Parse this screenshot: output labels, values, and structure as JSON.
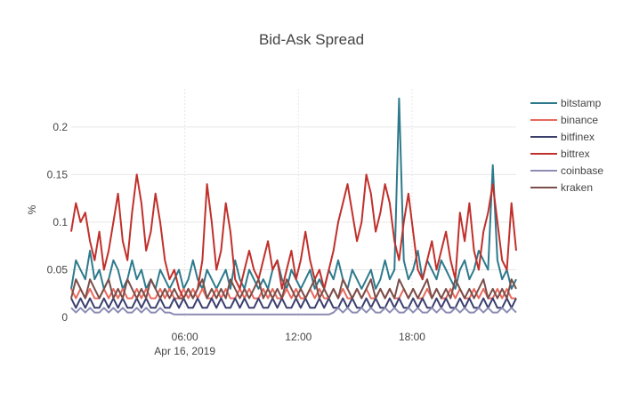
{
  "chart_data": {
    "type": "line",
    "title": "Bid-Ask Spread",
    "xlabel": "",
    "ylabel": "%",
    "x_range_hours": [
      0,
      23.5
    ],
    "ylim": [
      0,
      0.24
    ],
    "grid": true,
    "x_ticks": [
      {
        "hour": 6,
        "label": "06:00",
        "sublabel": "Apr 16, 2019"
      },
      {
        "hour": 12,
        "label": "12:00",
        "sublabel": ""
      },
      {
        "hour": 18,
        "label": "18:00",
        "sublabel": ""
      }
    ],
    "y_ticks": [
      {
        "value": 0,
        "label": "0"
      },
      {
        "value": 0.05,
        "label": "0.05"
      },
      {
        "value": 0.1,
        "label": "0.1"
      },
      {
        "value": 0.15,
        "label": "0.15"
      },
      {
        "value": 0.2,
        "label": "0.2"
      }
    ],
    "legend_position": "right",
    "series": [
      {
        "name": "bitstamp",
        "color": "#2e7a8c",
        "values": [
          0.03,
          0.06,
          0.05,
          0.04,
          0.07,
          0.04,
          0.05,
          0.03,
          0.04,
          0.06,
          0.05,
          0.03,
          0.04,
          0.06,
          0.04,
          0.05,
          0.03,
          0.04,
          0.03,
          0.05,
          0.04,
          0.03,
          0.04,
          0.05,
          0.03,
          0.04,
          0.06,
          0.04,
          0.03,
          0.05,
          0.04,
          0.03,
          0.04,
          0.05,
          0.03,
          0.06,
          0.04,
          0.03,
          0.05,
          0.04,
          0.03,
          0.04,
          0.03,
          0.05,
          0.06,
          0.04,
          0.03,
          0.05,
          0.04,
          0.03,
          0.04,
          0.05,
          0.03,
          0.04,
          0.03,
          0.05,
          0.04,
          0.06,
          0.04,
          0.03,
          0.05,
          0.04,
          0.03,
          0.04,
          0.05,
          0.03,
          0.04,
          0.06,
          0.04,
          0.05,
          0.23,
          0.06,
          0.04,
          0.05,
          0.07,
          0.04,
          0.06,
          0.05,
          0.04,
          0.06,
          0.05,
          0.04,
          0.03,
          0.05,
          0.06,
          0.04,
          0.05,
          0.07,
          0.06,
          0.05,
          0.16,
          0.06,
          0.04,
          0.05,
          0.03,
          0.04
        ]
      },
      {
        "name": "binance",
        "color": "#e8695e",
        "values": [
          0.03,
          0.02,
          0.03,
          0.02,
          0.03,
          0.02,
          0.02,
          0.03,
          0.02,
          0.03,
          0.02,
          0.03,
          0.02,
          0.02,
          0.03,
          0.02,
          0.03,
          0.02,
          0.02,
          0.03,
          0.02,
          0.03,
          0.02,
          0.02,
          0.03,
          0.02,
          0.03,
          0.02,
          0.03,
          0.02,
          0.02,
          0.03,
          0.02,
          0.03,
          0.02,
          0.02,
          0.03,
          0.02,
          0.03,
          0.02,
          0.02,
          0.03,
          0.02,
          0.03,
          0.02,
          0.02,
          0.03,
          0.02,
          0.03,
          0.02,
          0.02,
          0.03,
          0.02,
          0.03,
          0.02,
          0.02,
          0.03,
          0.02,
          0.03,
          0.02,
          0.02,
          0.03,
          0.02,
          0.03,
          0.02,
          0.02,
          0.03,
          0.02,
          0.03,
          0.02,
          0.02,
          0.03,
          0.02,
          0.03,
          0.02,
          0.02,
          0.03,
          0.02,
          0.03,
          0.02,
          0.02,
          0.03,
          0.02,
          0.03,
          0.02,
          0.02,
          0.03,
          0.02,
          0.03,
          0.02,
          0.02,
          0.03,
          0.02,
          0.03,
          0.02,
          0.02
        ]
      },
      {
        "name": "bitfinex",
        "color": "#3b3f6e",
        "values": [
          0.02,
          0.01,
          0.02,
          0.01,
          0.02,
          0.01,
          0.01,
          0.02,
          0.01,
          0.02,
          0.01,
          0.02,
          0.01,
          0.01,
          0.02,
          0.01,
          0.02,
          0.01,
          0.01,
          0.02,
          0.01,
          0.01,
          0.02,
          0.01,
          0.02,
          0.01,
          0.01,
          0.02,
          0.01,
          0.01,
          0.02,
          0.01,
          0.02,
          0.01,
          0.01,
          0.02,
          0.01,
          0.02,
          0.01,
          0.01,
          0.02,
          0.01,
          0.01,
          0.02,
          0.01,
          0.02,
          0.01,
          0.01,
          0.02,
          0.01,
          0.02,
          0.01,
          0.01,
          0.02,
          0.01,
          0.02,
          0.01,
          0.01,
          0.02,
          0.01,
          0.02,
          0.01,
          0.01,
          0.02,
          0.01,
          0.02,
          0.01,
          0.01,
          0.02,
          0.01,
          0.02,
          0.01,
          0.01,
          0.02,
          0.01,
          0.02,
          0.01,
          0.01,
          0.02,
          0.01,
          0.02,
          0.01,
          0.01,
          0.02,
          0.01,
          0.02,
          0.01,
          0.01,
          0.02,
          0.01,
          0.02,
          0.01,
          0.01,
          0.02,
          0.01,
          0.02
        ]
      },
      {
        "name": "bittrex",
        "color": "#c0302b",
        "values": [
          0.09,
          0.12,
          0.1,
          0.11,
          0.08,
          0.06,
          0.09,
          0.05,
          0.07,
          0.1,
          0.13,
          0.08,
          0.06,
          0.11,
          0.15,
          0.12,
          0.07,
          0.09,
          0.13,
          0.1,
          0.06,
          0.04,
          0.05,
          0.03,
          0.02,
          0.03,
          0.02,
          0.03,
          0.06,
          0.14,
          0.1,
          0.05,
          0.07,
          0.12,
          0.09,
          0.04,
          0.03,
          0.05,
          0.07,
          0.05,
          0.04,
          0.06,
          0.08,
          0.05,
          0.06,
          0.03,
          0.05,
          0.07,
          0.04,
          0.06,
          0.09,
          0.06,
          0.04,
          0.05,
          0.03,
          0.05,
          0.07,
          0.1,
          0.12,
          0.14,
          0.11,
          0.08,
          0.1,
          0.15,
          0.13,
          0.09,
          0.11,
          0.14,
          0.12,
          0.08,
          0.06,
          0.1,
          0.13,
          0.09,
          0.05,
          0.04,
          0.06,
          0.08,
          0.05,
          0.07,
          0.09,
          0.06,
          0.04,
          0.11,
          0.08,
          0.12,
          0.07,
          0.05,
          0.09,
          0.11,
          0.14,
          0.1,
          0.06,
          0.05,
          0.12,
          0.07
        ]
      },
      {
        "name": "coinbase",
        "color": "#8c8cb4",
        "values": [
          0.01,
          0.005,
          0.01,
          0.005,
          0.01,
          0.005,
          0.005,
          0.01,
          0.005,
          0.01,
          0.005,
          0.01,
          0.005,
          0.005,
          0.01,
          0.005,
          0.01,
          0.005,
          0.005,
          0.01,
          0.005,
          0.005,
          0.003,
          0.003,
          0.003,
          0.003,
          0.003,
          0.003,
          0.003,
          0.003,
          0.003,
          0.003,
          0.003,
          0.003,
          0.003,
          0.003,
          0.003,
          0.003,
          0.003,
          0.003,
          0.003,
          0.003,
          0.003,
          0.003,
          0.003,
          0.003,
          0.003,
          0.003,
          0.003,
          0.003,
          0.003,
          0.003,
          0.003,
          0.003,
          0.003,
          0.003,
          0.005,
          0.01,
          0.005,
          0.01,
          0.005,
          0.005,
          0.01,
          0.005,
          0.01,
          0.005,
          0.005,
          0.01,
          0.005,
          0.01,
          0.005,
          0.005,
          0.01,
          0.005,
          0.01,
          0.005,
          0.005,
          0.01,
          0.005,
          0.01,
          0.005,
          0.005,
          0.01,
          0.005,
          0.01,
          0.005,
          0.005,
          0.01,
          0.005,
          0.01,
          0.005,
          0.005,
          0.01,
          0.005,
          0.01,
          0.005
        ]
      },
      {
        "name": "kraken",
        "color": "#7a4e4a",
        "values": [
          0.02,
          0.04,
          0.03,
          0.02,
          0.04,
          0.03,
          0.02,
          0.03,
          0.04,
          0.02,
          0.03,
          0.02,
          0.04,
          0.03,
          0.02,
          0.03,
          0.02,
          0.04,
          0.03,
          0.02,
          0.03,
          0.02,
          0.03,
          0.02,
          0.02,
          0.03,
          0.02,
          0.03,
          0.04,
          0.02,
          0.03,
          0.02,
          0.03,
          0.02,
          0.04,
          0.03,
          0.02,
          0.03,
          0.02,
          0.03,
          0.04,
          0.02,
          0.03,
          0.02,
          0.03,
          0.02,
          0.04,
          0.03,
          0.02,
          0.03,
          0.02,
          0.03,
          0.04,
          0.02,
          0.03,
          0.02,
          0.03,
          0.02,
          0.04,
          0.03,
          0.02,
          0.03,
          0.02,
          0.03,
          0.04,
          0.02,
          0.03,
          0.02,
          0.03,
          0.02,
          0.04,
          0.03,
          0.02,
          0.03,
          0.02,
          0.03,
          0.04,
          0.02,
          0.03,
          0.02,
          0.03,
          0.02,
          0.04,
          0.03,
          0.02,
          0.03,
          0.02,
          0.03,
          0.04,
          0.02,
          0.03,
          0.02,
          0.03,
          0.02,
          0.04,
          0.03
        ]
      }
    ]
  }
}
